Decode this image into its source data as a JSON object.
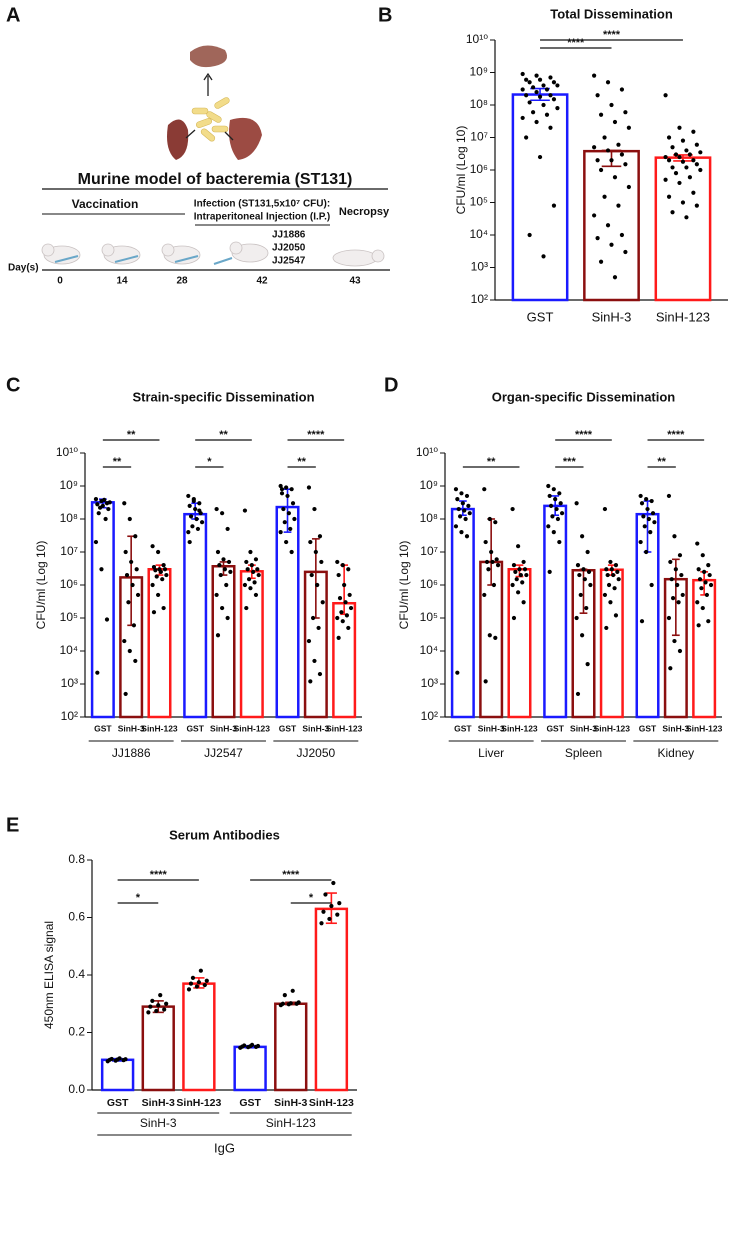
{
  "diagram": {
    "panel_label": "A",
    "title": "Murine model of bacteremia (ST131)",
    "vaccination": "Vaccination",
    "infection": [
      "Infection (ST131,5x10⁷ CFU):",
      "Intraperitoneal Injection (I.P.)"
    ],
    "strains": [
      "JJ1886",
      "JJ2050",
      "JJ2547"
    ],
    "necropsy": "Necropsy",
    "day_label": "Day(s)",
    "days": [
      "0",
      "14",
      "28",
      "42",
      "43"
    ]
  },
  "chart_data": [
    {
      "type": "bar",
      "panel_label": "B",
      "title": "Total Dissemination",
      "y_label": "CFU/ml (Log 10)",
      "log_scale": true,
      "ylim": [
        100.0,
        10000000000.0
      ],
      "yticks": [
        {
          "value": 100.0,
          "label": "10²"
        },
        {
          "value": 1000.0,
          "label": "10³"
        },
        {
          "value": 10000.0,
          "label": "10⁴"
        },
        {
          "value": 100000.0,
          "label": "10⁵"
        },
        {
          "value": 1000000.0,
          "label": "10⁶"
        },
        {
          "value": 10000000.0,
          "label": "10⁷"
        },
        {
          "value": 100000000.0,
          "label": "10⁸"
        },
        {
          "value": 1000000000.0,
          "label": "10⁹"
        },
        {
          "value": 10000000000.0,
          "label": "10¹⁰"
        }
      ],
      "annotations": [
        "****",
        "****"
      ],
      "series": [
        {
          "name": "GST",
          "color": "#1a1aff",
          "values": [
            210000000.0
          ],
          "err_lo": [
            140000000.0
          ],
          "err_hi": [
            320000000.0
          ],
          "points": [
            [
              900000000.0,
              800000000.0,
              700000000.0,
              600000000.0,
              600000000.0,
              500000000.0,
              500000000.0,
              400000000.0,
              400000000.0,
              350000000.0,
              300000000.0,
              300000000.0,
              250000000.0,
              200000000.0,
              200000000.0,
              180000000.0,
              150000000.0,
              120000000.0,
              100000000.0,
              80000000.0,
              60000000.0,
              50000000.0,
              40000000.0,
              30000000.0,
              20000000.0,
              10000000.0,
              2500000.0,
              80000.0,
              10000.0,
              2200.0
            ]
          ]
        },
        {
          "name": "SinH-3",
          "color": "#8b0f0f",
          "values": [
            3800000.0
          ],
          "err_lo": [
            1300000.0
          ],
          "err_hi": [
            4000000.0
          ],
          "points": [
            [
              800000000.0,
              500000000.0,
              300000000.0,
              200000000.0,
              100000000.0,
              60000000.0,
              50000000.0,
              30000000.0,
              20000000.0,
              10000000.0,
              6000000.0,
              5000000.0,
              4000000.0,
              3000000.0,
              2000000.0,
              2000000.0,
              1500000.0,
              1000000.0,
              600000.0,
              300000.0,
              150000.0,
              80000.0,
              40000.0,
              20000.0,
              10000.0,
              8000.0,
              5000.0,
              3000.0,
              1500.0,
              500.0
            ]
          ]
        },
        {
          "name": "SinH-123",
          "color": "#ff1a1a",
          "values": [
            2400000.0
          ],
          "err_lo": [
            1900000.0
          ],
          "err_hi": [
            2900000.0
          ],
          "points": [
            [
              200000000.0,
              20000000.0,
              15000000.0,
              10000000.0,
              8000000.0,
              6000000.0,
              5000000.0,
              4000000.0,
              3500000.0,
              3000000.0,
              3000000.0,
              2500000.0,
              2500000.0,
              2000000.0,
              2000000.0,
              1800000.0,
              1500000.0,
              1200000.0,
              1200000.0,
              1000000.0,
              800000.0,
              600000.0,
              500000.0,
              400000.0,
              200000.0,
              150000.0,
              100000.0,
              80000.0,
              50000.0,
              35000.0
            ]
          ]
        }
      ]
    },
    {
      "type": "bar",
      "panel_label": "C",
      "title": "Strain-specific Dissemination",
      "y_label": "CFU/ml (Log 10)",
      "log_scale": true,
      "ylim": [
        100.0,
        10000000000.0
      ],
      "yticks": [
        {
          "value": 100.0,
          "label": "10²"
        },
        {
          "value": 1000.0,
          "label": "10³"
        },
        {
          "value": 10000.0,
          "label": "10⁴"
        },
        {
          "value": 100000.0,
          "label": "10⁵"
        },
        {
          "value": 1000000.0,
          "label": "10⁶"
        },
        {
          "value": 10000000.0,
          "label": "10⁷"
        },
        {
          "value": 100000000.0,
          "label": "10⁸"
        },
        {
          "value": 1000000000.0,
          "label": "10⁹"
        },
        {
          "value": 10000000000.0,
          "label": "10¹⁰"
        }
      ],
      "groups": [
        "JJ1886",
        "JJ2547",
        "JJ2050"
      ],
      "annotations": [
        "**",
        "**",
        "*",
        "**",
        "**",
        "****"
      ],
      "series": [
        {
          "name": "GST",
          "color": "#1a1aff",
          "values": [
            320000000.0,
            140000000.0,
            230000000.0
          ],
          "err_lo": [
            220000000.0,
            100000000.0,
            40000000.0
          ],
          "err_hi": [
            400000000.0,
            300000000.0,
            800000000.0
          ],
          "points": [
            [
              400000000.0,
              350000000.0,
              300000000.0,
              280000000.0,
              250000000.0,
              200000000.0,
              150000000.0,
              380000000.0,
              320000000.0,
              220000000.0,
              100000000.0,
              20000000.0,
              3000000.0,
              90000.0,
              2200.0
            ],
            [
              500000000.0,
              400000000.0,
              300000000.0,
              250000000.0,
              200000000.0,
              150000000.0,
              120000000.0,
              100000000.0,
              80000000.0,
              60000000.0,
              50000000.0,
              40000000.0,
              350000000.0,
              180000000.0,
              20000000.0
            ],
            [
              1000000000.0,
              900000000.0,
              800000000.0,
              600000000.0,
              500000000.0,
              300000000.0,
              200000000.0,
              150000000.0,
              100000000.0,
              80000000.0,
              50000000.0,
              40000000.0,
              20000000.0,
              10000000.0,
              800000000.0
            ]
          ]
        },
        {
          "name": "SinH-3",
          "color": "#8b0f0f",
          "values": [
            1700000.0,
            3700000.0,
            2500000.0
          ],
          "err_lo": [
            60000.0,
            2000000.0,
            100000.0
          ],
          "err_hi": [
            30000000.0,
            5000000.0,
            25000000.0
          ],
          "points": [
            [
              300000000.0,
              100000000.0,
              30000000.0,
              10000000.0,
              5000000.0,
              3000000.0,
              2000000.0,
              1000000.0,
              500000.0,
              300000.0,
              60000.0,
              20000.0,
              10000.0,
              5000.0,
              500.0
            ],
            [
              200000000.0,
              150000000.0,
              50000000.0,
              10000000.0,
              6000000.0,
              5000000.0,
              4000000.0,
              3000000.0,
              2500000.0,
              2000000.0,
              1000000.0,
              500000.0,
              200000.0,
              100000.0,
              30000.0
            ],
            [
              900000000.0,
              200000000.0,
              30000000.0,
              20000000.0,
              10000000.0,
              5000000.0,
              2000000.0,
              1000000.0,
              300000.0,
              100000.0,
              50000.0,
              20000.0,
              5000.0,
              2000.0,
              1200.0
            ]
          ]
        },
        {
          "name": "SinH-123",
          "color": "#ff1a1a",
          "values": [
            3000000.0,
            2600000.0,
            280000.0
          ],
          "err_lo": [
            2000000.0,
            1600000.0,
            130000.0
          ],
          "err_hi": [
            4000000.0,
            4000000.0,
            4000000.0
          ],
          "points": [
            [
              15000000.0,
              10000000.0,
              4000000.0,
              3500000.0,
              3000000.0,
              3000000.0,
              2800000.0,
              2500000.0,
              2000000.0,
              1800000.0,
              1500000.0,
              1000000.0,
              500000.0,
              200000.0,
              150000.0
            ],
            [
              180000000.0,
              10000000.0,
              6000000.0,
              5000000.0,
              4000000.0,
              3000000.0,
              3000000.0,
              2500000.0,
              2000000.0,
              1500000.0,
              1200000.0,
              1000000.0,
              800000.0,
              500000.0,
              200000.0
            ],
            [
              5000000.0,
              4000000.0,
              3000000.0,
              2000000.0,
              1000000.0,
              500000.0,
              400000.0,
              300000.0,
              200000.0,
              150000.0,
              120000.0,
              100000.0,
              80000.0,
              50000.0,
              25000.0
            ]
          ]
        }
      ]
    },
    {
      "type": "bar",
      "panel_label": "D",
      "title": "Organ-specific Dissemination",
      "y_label": "CFU/ml (Log 10)",
      "log_scale": true,
      "ylim": [
        100.0,
        10000000000.0
      ],
      "yticks": [
        {
          "value": 100.0,
          "label": "10²"
        },
        {
          "value": 1000.0,
          "label": "10³"
        },
        {
          "value": 10000.0,
          "label": "10⁴"
        },
        {
          "value": 100000.0,
          "label": "10⁵"
        },
        {
          "value": 1000000.0,
          "label": "10⁶"
        },
        {
          "value": 10000000.0,
          "label": "10⁷"
        },
        {
          "value": 100000000.0,
          "label": "10⁸"
        },
        {
          "value": 1000000000.0,
          "label": "10⁹"
        },
        {
          "value": 10000000000.0,
          "label": "10¹⁰"
        }
      ],
      "groups": [
        "Liver",
        "Spleen",
        "Kidney"
      ],
      "annotations": [
        "**",
        "***",
        "****",
        "**",
        "****"
      ],
      "series": [
        {
          "name": "GST",
          "color": "#1a1aff",
          "values": [
            200000000.0,
            250000000.0,
            140000000.0
          ],
          "err_lo": [
            130000000.0,
            130000000.0,
            10000000.0
          ],
          "err_hi": [
            350000000.0,
            500000000.0,
            350000000.0
          ],
          "points": [
            [
              800000000.0,
              600000000.0,
              500000000.0,
              400000000.0,
              300000000.0,
              250000000.0,
              200000000.0,
              180000000.0,
              150000000.0,
              120000000.0,
              100000000.0,
              60000000.0,
              40000000.0,
              30000000.0,
              2200.0
            ],
            [
              1000000000.0,
              800000000.0,
              600000000.0,
              500000000.0,
              400000000.0,
              300000000.0,
              250000000.0,
              200000000.0,
              150000000.0,
              120000000.0,
              100000000.0,
              60000000.0,
              40000000.0,
              20000000.0,
              2500000.0
            ],
            [
              500000000.0,
              400000000.0,
              350000000.0,
              300000000.0,
              200000000.0,
              150000000.0,
              120000000.0,
              100000000.0,
              80000000.0,
              60000000.0,
              40000000.0,
              20000000.0,
              10000000.0,
              1000000.0,
              80000.0
            ]
          ]
        },
        {
          "name": "SinH-3",
          "color": "#8b0f0f",
          "values": [
            5000000.0,
            2800000.0,
            1500000.0
          ],
          "err_lo": [
            1000000.0,
            140000.0,
            30000.0
          ],
          "err_hi": [
            100000000.0,
            3000000.0,
            6000000.0
          ],
          "points": [
            [
              800000000.0,
              100000000.0,
              80000000.0,
              20000000.0,
              10000000.0,
              6000000.0,
              5000000.0,
              5000000.0,
              4000000.0,
              3000000.0,
              1000000.0,
              500000.0,
              30000.0,
              25000.0,
              1200.0
            ],
            [
              300000000.0,
              30000000.0,
              10000000.0,
              4000000.0,
              3000000.0,
              2500000.0,
              2000000.0,
              1500000.0,
              1000000.0,
              500000.0,
              200000.0,
              100000.0,
              30000.0,
              4000.0,
              500.0
            ],
            [
              500000000.0,
              30000000.0,
              8000000.0,
              5000000.0,
              3000000.0,
              2000000.0,
              1500000.0,
              1000000.0,
              500000.0,
              400000.0,
              300000.0,
              100000.0,
              20000.0,
              10000.0,
              3000.0
            ]
          ]
        },
        {
          "name": "SinH-123",
          "color": "#ff1a1a",
          "values": [
            3000000.0,
            2900000.0,
            1400000.0
          ],
          "err_lo": [
            1800000.0,
            2000000.0,
            500000.0
          ],
          "err_hi": [
            4000000.0,
            4000000.0,
            2500000.0
          ],
          "points": [
            [
              200000000.0,
              15000000.0,
              5000000.0,
              4000000.0,
              3000000.0,
              3000000.0,
              2500000.0,
              2000000.0,
              2000000.0,
              1500000.0,
              1200000.0,
              1000000.0,
              600000.0,
              300000.0,
              100000.0
            ],
            [
              200000000.0,
              5000000.0,
              4000000.0,
              3000000.0,
              3000000.0,
              2500000.0,
              2000000.0,
              2000000.0,
              1500000.0,
              1000000.0,
              800000.0,
              500000.0,
              300000.0,
              120000.0,
              50000.0
            ],
            [
              18000000.0,
              8000000.0,
              4000000.0,
              3000000.0,
              2500000.0,
              2000000.0,
              1500000.0,
              1200000.0,
              1000000.0,
              800000.0,
              500000.0,
              300000.0,
              200000.0,
              80000.0,
              60000.0
            ]
          ]
        }
      ]
    },
    {
      "type": "bar",
      "panel_label": "E",
      "title": "Serum Antibodies",
      "y_label": "450nm ELISA signal",
      "log_scale": false,
      "ylim": [
        0,
        0.8
      ],
      "yticks": [
        {
          "value": 0,
          "label": "0.0"
        },
        0.2,
        0.4,
        0.6,
        0.8
      ],
      "groups": [
        "SinH-3",
        "SinH-123"
      ],
      "supergroup": "IgG",
      "annotations": [
        "*",
        "****",
        "*",
        "****"
      ],
      "series": [
        {
          "name": "GST",
          "color": "#1a1aff",
          "values": [
            0.105,
            0.15
          ],
          "err_lo": [
            0.101,
            0.147
          ],
          "err_hi": [
            0.109,
            0.154
          ],
          "points": [
            [
              0.1,
              0.102,
              0.104,
              0.105,
              0.106,
              0.107,
              0.108,
              0.11
            ],
            [
              0.147,
              0.149,
              0.15,
              0.151,
              0.152,
              0.153,
              0.155,
              0.157
            ]
          ]
        },
        {
          "name": "SinH-3",
          "color": "#8b0f0f",
          "values": [
            0.29,
            0.3
          ],
          "err_lo": [
            0.27,
            0.297
          ],
          "err_hi": [
            0.31,
            0.305
          ],
          "points": [
            [
              0.27,
              0.275,
              0.28,
              0.29,
              0.295,
              0.3,
              0.31,
              0.33
            ],
            [
              0.295,
              0.298,
              0.3,
              0.3,
              0.302,
              0.305,
              0.33,
              0.345
            ]
          ]
        },
        {
          "name": "SinH-123",
          "color": "#ff1a1a",
          "values": [
            0.37,
            0.63
          ],
          "err_lo": [
            0.355,
            0.58
          ],
          "err_hi": [
            0.39,
            0.685
          ],
          "points": [
            [
              0.35,
              0.36,
              0.365,
              0.37,
              0.375,
              0.38,
              0.39,
              0.415
            ],
            [
              0.58,
              0.595,
              0.61,
              0.62,
              0.64,
              0.65,
              0.68,
              0.72
            ]
          ]
        }
      ]
    }
  ]
}
